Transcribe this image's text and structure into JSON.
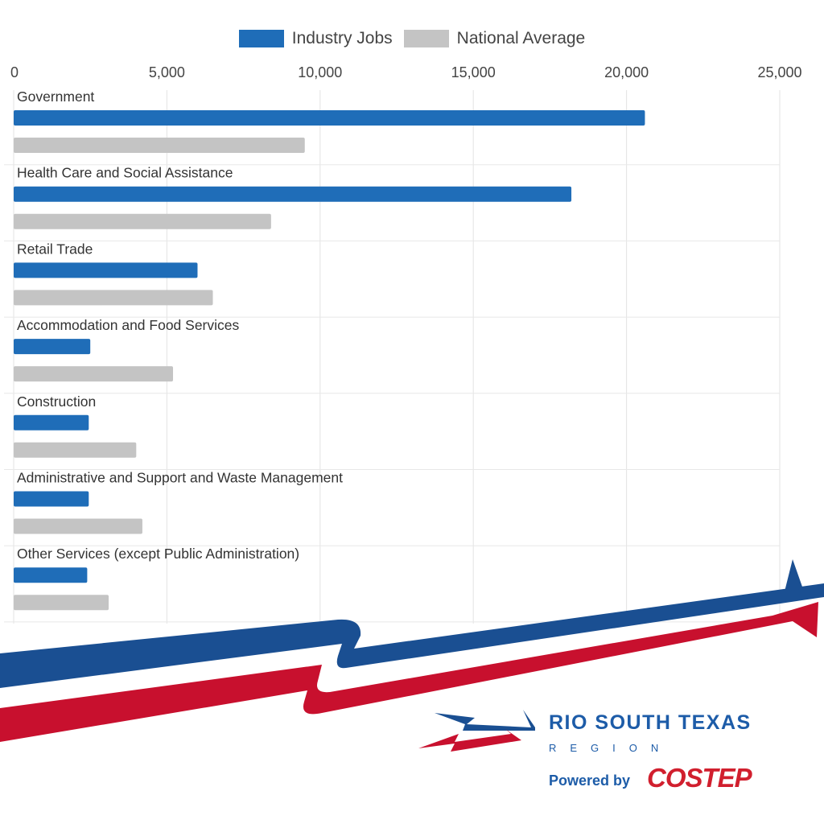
{
  "chart_data": {
    "type": "bar",
    "orientation": "horizontal",
    "categories": [
      "Government",
      "Health Care and Social Assistance",
      "Retail Trade",
      "Accommodation and Food Services",
      "Construction",
      "Administrative and Support and Waste Management",
      "Other Services (except Public Administration)"
    ],
    "series": [
      {
        "name": "Industry Jobs",
        "color": "#1f6db8",
        "values": [
          20600,
          18200,
          6000,
          2500,
          2450,
          2450,
          2400
        ]
      },
      {
        "name": "National Average",
        "color": "#c4c4c4",
        "values": [
          9500,
          8400,
          6500,
          5200,
          4000,
          4200,
          3100
        ]
      }
    ],
    "xlim": [
      0,
      25000
    ],
    "xticks": [
      0,
      5000,
      10000,
      15000,
      20000,
      25000
    ],
    "xtick_labels": [
      "0",
      "5,000",
      "10,000",
      "15,000",
      "20,000",
      "25,000"
    ],
    "legend_position": "top",
    "grid": true
  },
  "branding": {
    "name": "RIO SOUTH TEXAS",
    "sub": "REGION",
    "powered": "Powered by",
    "partner": "COSTEP",
    "blue": "#1a4f92",
    "red": "#c8102e"
  }
}
